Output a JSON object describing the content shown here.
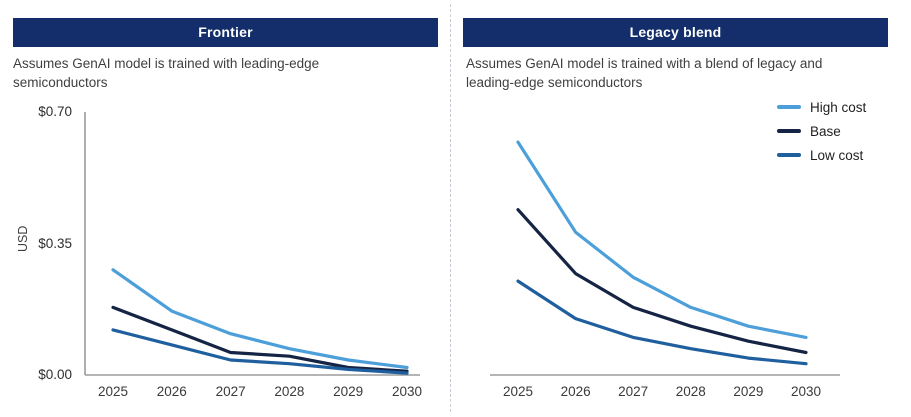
{
  "colors": {
    "banner": "#132e6b",
    "axis": "#9b9b9b",
    "high_cost": "#4c9fd9",
    "base": "#152444",
    "low_cost": "#1f5f9e"
  },
  "legend": {
    "items": [
      {
        "label": "High cost",
        "color": "#4c9fd9"
      },
      {
        "label": "Base",
        "color": "#152444"
      },
      {
        "label": "Low cost",
        "color": "#1f5f9e"
      }
    ]
  },
  "chart_data": [
    {
      "type": "line",
      "title": "Frontier",
      "subtitle": "Assumes GenAI model is trained with leading-edge semiconductors",
      "categories": [
        "2025",
        "2026",
        "2027",
        "2028",
        "2029",
        "2030"
      ],
      "ylabel": "USD",
      "ylim": [
        0,
        0.7
      ],
      "yticks": [
        {
          "value": 0.7,
          "label": "$0.70"
        },
        {
          "value": 0.35,
          "label": "$0.35"
        },
        {
          "value": 0.0,
          "label": "$0.00"
        }
      ],
      "grid": false,
      "series": [
        {
          "name": "High cost",
          "color": "#4c9fd9",
          "values": [
            0.28,
            0.17,
            0.11,
            0.07,
            0.04,
            0.02
          ]
        },
        {
          "name": "Base",
          "color": "#152444",
          "values": [
            0.18,
            0.12,
            0.06,
            0.05,
            0.02,
            0.01
          ]
        },
        {
          "name": "Low cost",
          "color": "#1f5f9e",
          "values": [
            0.12,
            0.08,
            0.04,
            0.03,
            0.015,
            0.005
          ]
        }
      ]
    },
    {
      "type": "line",
      "title": "Legacy blend",
      "subtitle": "Assumes GenAI model is trained with a blend of legacy and leading-edge semiconductors",
      "categories": [
        "2025",
        "2026",
        "2027",
        "2028",
        "2029",
        "2030"
      ],
      "ylabel": "",
      "ylim": [
        0,
        0.7
      ],
      "yticks": [],
      "grid": false,
      "legend_position": "top-right",
      "series": [
        {
          "name": "High cost",
          "color": "#4c9fd9",
          "values": [
            0.62,
            0.38,
            0.26,
            0.18,
            0.13,
            0.1
          ]
        },
        {
          "name": "Base",
          "color": "#152444",
          "values": [
            0.44,
            0.27,
            0.18,
            0.13,
            0.09,
            0.06
          ]
        },
        {
          "name": "Low cost",
          "color": "#1f5f9e",
          "values": [
            0.25,
            0.15,
            0.1,
            0.07,
            0.045,
            0.03
          ]
        }
      ]
    }
  ]
}
